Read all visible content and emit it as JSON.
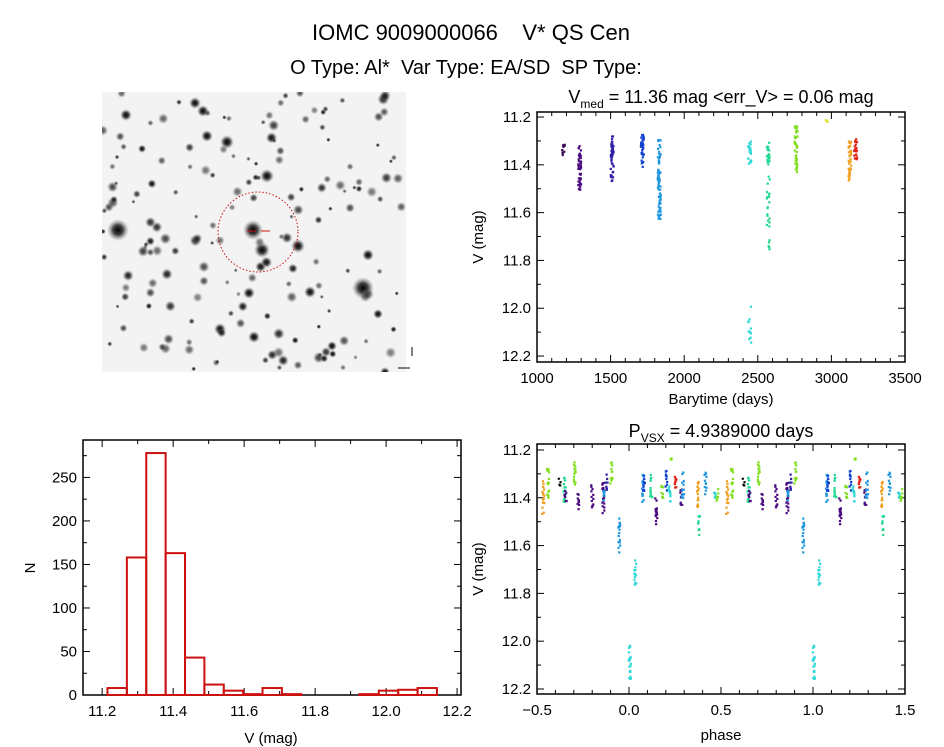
{
  "title": {
    "line1": "IOMC 9009000066    V* QS Cen",
    "line2": "O Type: Al*  Var Type: EA/SD  SP Type:"
  },
  "finder_image": {
    "marker_color": "#cc1111",
    "background": "#f3f3f3"
  },
  "colors": [
    "#3a0a5a",
    "#4b0a80",
    "#3020a8",
    "#1040d0",
    "#2098e0",
    "#30d8d8",
    "#20d890",
    "#80e020",
    "#e0e020",
    "#f0a020",
    "#e02010",
    "#101010"
  ],
  "chart_data": [
    {
      "type": "bar",
      "id": "histogram",
      "xlabel": "V (mag)",
      "ylabel": "N",
      "xlim": [
        11.146,
        12.211
      ],
      "ylim": [
        0,
        293
      ],
      "xticks": [
        "11.2",
        "11.4",
        "11.6",
        "11.8",
        "12.0",
        "12.2"
      ],
      "yticks": [
        "0",
        "50",
        "100",
        "150",
        "200",
        "250"
      ],
      "bin_start": 11.215,
      "bin_width": 0.0546,
      "values": [
        8,
        158,
        278,
        163,
        43,
        12,
        5,
        1,
        8,
        1,
        0,
        0,
        0,
        1,
        5,
        6,
        8
      ],
      "bar_color": "#cc1111"
    },
    {
      "type": "scatter",
      "id": "light-curve",
      "title": {
        "prefix": "V",
        "subscript": "med",
        "text": " = 11.36 mag <err_V> = 0.06 mag"
      },
      "xlabel": "Barytime (days)",
      "ylabel": "V (mag)",
      "xlim": [
        1000,
        3500
      ],
      "ylim": [
        11.179,
        12.225
      ],
      "y_reversed": true,
      "xticks": [
        "1000",
        "1500",
        "2000",
        "2500",
        "3000",
        "3500"
      ],
      "yticks": [
        "11.2",
        "11.4",
        "11.6",
        "11.8",
        "12.0",
        "12.2"
      ],
      "seasons": [
        {
          "t": 1180,
          "v": [
            [
              11.31,
              11.36
            ]
          ],
          "color": 0
        },
        {
          "t": 1290,
          "v": [
            [
              11.32,
              11.52
            ]
          ],
          "color": 1
        },
        {
          "t": 1510,
          "v": [
            [
              11.28,
              11.47
            ]
          ],
          "color": 2
        },
        {
          "t": 1715,
          "v": [
            [
              11.27,
              11.41
            ]
          ],
          "color": 3
        },
        {
          "t": 1830,
          "v": [
            [
              11.29,
              11.63
            ]
          ],
          "color": 4
        },
        {
          "t": 2445,
          "v": [
            [
              11.3,
              11.4
            ],
            [
              11.99,
              12.16
            ]
          ],
          "color": 5
        },
        {
          "t": 2570,
          "v": [
            [
              11.3,
              11.4
            ],
            [
              11.44,
              11.77
            ]
          ],
          "color": 6
        },
        {
          "t": 2760,
          "v": [
            [
              11.23,
              11.43
            ]
          ],
          "color": 7
        },
        {
          "t": 2970,
          "v": [
            [
              11.21,
              11.22
            ]
          ],
          "color": 8
        },
        {
          "t": 3125,
          "v": [
            [
              11.3,
              11.47
            ]
          ],
          "color": 9
        },
        {
          "t": 3165,
          "v": [
            [
              11.29,
              11.38
            ]
          ],
          "color": 10
        }
      ]
    },
    {
      "type": "scatter",
      "id": "phase-curve",
      "title": {
        "prefix": "P",
        "subscript": "VSX",
        "text": " = 4.9389000 days"
      },
      "xlabel": "phase",
      "ylabel": "V (mag)",
      "xlim": [
        -0.5,
        1.5
      ],
      "ylim": [
        11.175,
        12.221
      ],
      "y_reversed": true,
      "xticks": [
        "-0.5",
        "0.0",
        "0.5",
        "1.0",
        "1.5"
      ],
      "yticks": [
        "11.2",
        "11.4",
        "11.6",
        "11.8",
        "12.0",
        "12.2"
      ],
      "period_days": 4.9389,
      "clusters": [
        {
          "phase": -0.467,
          "v": [
            11.33,
            11.47
          ],
          "color": 9
        },
        {
          "phase": -0.44,
          "v": [
            11.26,
            11.4
          ],
          "color": 7
        },
        {
          "phase": -0.377,
          "v": [
            11.32,
            11.35
          ],
          "color": 11
        },
        {
          "phase": -0.35,
          "v": [
            11.3,
            11.42
          ],
          "color": 6
        },
        {
          "phase": -0.345,
          "v": [
            11.36,
            11.42
          ],
          "color": 1
        },
        {
          "phase": -0.295,
          "v": [
            11.24,
            11.36
          ],
          "color": 7
        },
        {
          "phase": -0.277,
          "v": [
            11.38,
            11.46
          ],
          "color": 1
        },
        {
          "phase": -0.2,
          "v": [
            11.34,
            11.44
          ],
          "color": 1
        },
        {
          "phase": -0.14,
          "v": [
            11.33,
            11.49
          ],
          "color": 1
        },
        {
          "phase": -0.135,
          "v": [
            11.35,
            11.42
          ],
          "color": 4
        },
        {
          "phase": -0.123,
          "v": [
            11.3,
            11.38
          ],
          "color": 2
        },
        {
          "phase": -0.096,
          "v": [
            11.25,
            11.34
          ],
          "color": 7
        },
        {
          "phase": -0.054,
          "v": [
            11.48,
            11.63
          ],
          "color": 4
        },
        {
          "phase": 0.004,
          "v": [
            11.99,
            12.16
          ],
          "color": 5
        },
        {
          "phase": 0.034,
          "v": [
            11.66,
            11.77
          ],
          "color": 5
        },
        {
          "phase": 0.076,
          "v": [
            11.3,
            11.42
          ],
          "color": 4
        },
        {
          "phase": 0.08,
          "v": [
            11.3,
            11.38
          ],
          "color": 3
        },
        {
          "phase": 0.12,
          "v": [
            11.3,
            11.4
          ],
          "color": 6
        },
        {
          "phase": 0.148,
          "v": [
            11.4,
            11.52
          ],
          "color": 1
        },
        {
          "phase": 0.18,
          "v": [
            11.34,
            11.41
          ],
          "color": 7
        },
        {
          "phase": 0.203,
          "v": [
            11.28,
            11.37
          ],
          "color": 3
        },
        {
          "phase": 0.221,
          "v": [
            11.35,
            11.44
          ],
          "color": 5
        },
        {
          "phase": 0.23,
          "v": [
            11.22,
            11.24
          ],
          "color": 7
        },
        {
          "phase": 0.254,
          "v": [
            11.29,
            11.37
          ],
          "color": 10
        },
        {
          "phase": 0.284,
          "v": [
            11.36,
            11.44
          ],
          "color": 1
        },
        {
          "phase": 0.293,
          "v": [
            11.29,
            11.4
          ],
          "color": 4
        },
        {
          "phase": 0.375,
          "v": [
            11.32,
            11.45
          ],
          "color": 9
        },
        {
          "phase": 0.38,
          "v": [
            11.47,
            11.56
          ],
          "color": 6
        },
        {
          "phase": 0.415,
          "v": [
            11.29,
            11.39
          ],
          "color": 4
        },
        {
          "phase": 0.466,
          "v": [
            11.35,
            11.4
          ],
          "color": 5
        },
        {
          "phase": 0.48,
          "v": [
            11.36,
            11.42
          ],
          "color": 7
        }
      ]
    }
  ]
}
